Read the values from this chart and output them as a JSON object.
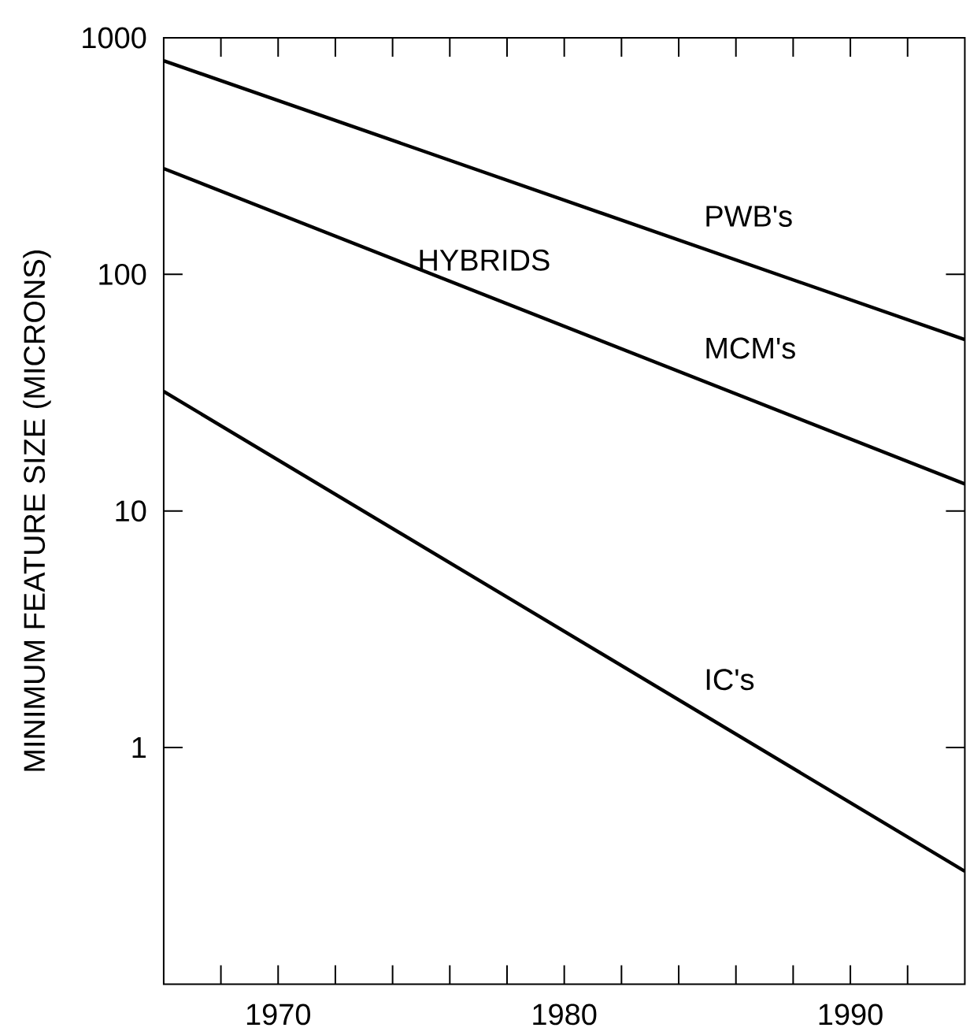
{
  "chart_data": {
    "type": "line",
    "ylabel": "MINIMUM FEATURE SIZE (MICRONS)",
    "log": "y",
    "line_style": "solid",
    "marker": "none",
    "x": [
      1966,
      1994
    ],
    "series": [
      {
        "name": "PWB's",
        "color": "#000000",
        "values": [
          800,
          53
        ]
      },
      {
        "name": "MCM's",
        "color": "#000000",
        "values": [
          280,
          13
        ]
      },
      {
        "name": "IC's",
        "color": "#000000",
        "values": [
          32,
          0.3
        ]
      }
    ],
    "xlim": [
      1966,
      1994
    ],
    "ylim": [
      0.1,
      1000
    ],
    "xticks": [
      {
        "value": 1968,
        "label": null
      },
      1970,
      {
        "value": 1972,
        "label": null
      },
      {
        "value": 1974,
        "label": null
      },
      {
        "value": 1976,
        "label": null
      },
      {
        "value": 1978,
        "label": null
      },
      1980,
      {
        "value": 1982,
        "label": null
      },
      {
        "value": 1984,
        "label": null
      },
      {
        "value": 1986,
        "label": null
      },
      {
        "value": 1988,
        "label": null
      },
      1990,
      {
        "value": 1992,
        "label": null
      }
    ],
    "yticks": [
      1,
      10,
      100,
      1000
    ],
    "annotations": [
      "HYBRIDS"
    ]
  }
}
